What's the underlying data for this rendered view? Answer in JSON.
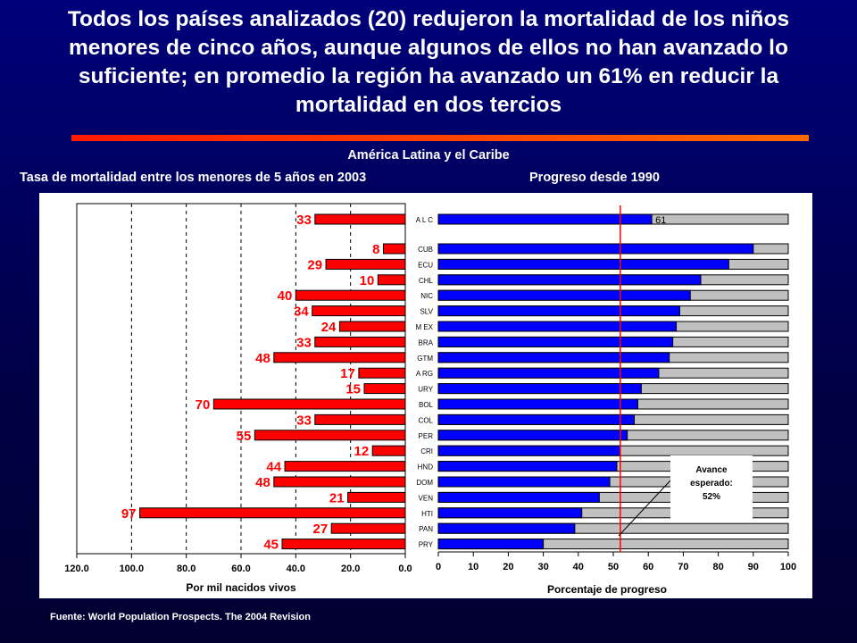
{
  "title_lines": [
    "Todos los países analizados (20) redujeron la mortalidad de los niños",
    "menores de cinco años, aunque algunos de ellos no han avanzado lo",
    "suficiente; en promedio la región ha avanzado un 61% en reducir la",
    "mortalidad en dos tercios"
  ],
  "region_label": "América Latina y el Caribe",
  "left_subtitle": "Tasa de mortalidad entre los menores de 5 años en 2003",
  "right_subtitle": "Progreso desde 1990",
  "source": "Fuente: World Population Prospects. The 2004 Revision",
  "colors": {
    "accent_red": "#ff0000",
    "bar_blue": "#0000ff",
    "track_gray": "#c0c0c0",
    "label_red": "#ff0000"
  },
  "chart_data": [
    {
      "type": "bar",
      "orientation": "horizontal",
      "x_direction": "reversed",
      "xlabel": "Por mil nacidos vivos",
      "xlim": [
        0,
        120
      ],
      "xticks": [
        "120.0",
        "100.0",
        "80.0",
        "60.0",
        "40.0",
        "20.0",
        "0.0"
      ],
      "grid": "vertical dashed",
      "categories": [
        "ALC",
        "CUB",
        "ECU",
        "CHL",
        "NIC",
        "SLV",
        "MEX",
        "BRA",
        "GTM",
        "ARG",
        "URY",
        "BOL",
        "COL",
        "PER",
        "CRI",
        "HND",
        "DOM",
        "VEN",
        "HTI",
        "PAN",
        "PRY"
      ],
      "values": [
        33,
        8,
        29,
        10,
        40,
        34,
        24,
        33,
        48,
        17,
        15,
        70,
        33,
        55,
        12,
        44,
        48,
        21,
        97,
        27,
        45
      ],
      "value_labels": [
        "33",
        "8",
        "29",
        "10",
        "40",
        "34",
        "24",
        "33",
        "48",
        "17",
        "15",
        "70",
        "33",
        "55",
        "12",
        "44",
        "48",
        "21",
        "97",
        "27",
        "45"
      ]
    },
    {
      "type": "bar",
      "orientation": "horizontal",
      "stacked": true,
      "xlabel": "Porcentaje de progreso",
      "xlim": [
        0,
        100
      ],
      "xticks": [
        "0",
        "10",
        "20",
        "30",
        "40",
        "50",
        "60",
        "70",
        "80",
        "90",
        "100"
      ],
      "category_labels": [
        "A L C",
        "CUB",
        "ECU",
        "CHL",
        "NIC",
        "SLV",
        "M EX",
        "BRA",
        "GTM",
        "A RG",
        "URY",
        "BOL",
        "COL",
        "PER",
        "CRI",
        "HND",
        "DOM",
        "VEN",
        "HTI",
        "PAN",
        "PRY"
      ],
      "series": [
        {
          "values": [
            61,
            90,
            83,
            75,
            72,
            69,
            68,
            67,
            66,
            63,
            58,
            57,
            56,
            54,
            52,
            51,
            49,
            46,
            41,
            39,
            30
          ]
        }
      ],
      "total": 100,
      "value_label": {
        "category": "ALC",
        "text": "61"
      },
      "reference_line": {
        "value": 52
      },
      "annotation": {
        "text_lines": [
          "Avance",
          "esperado:",
          "52%"
        ]
      }
    }
  ]
}
